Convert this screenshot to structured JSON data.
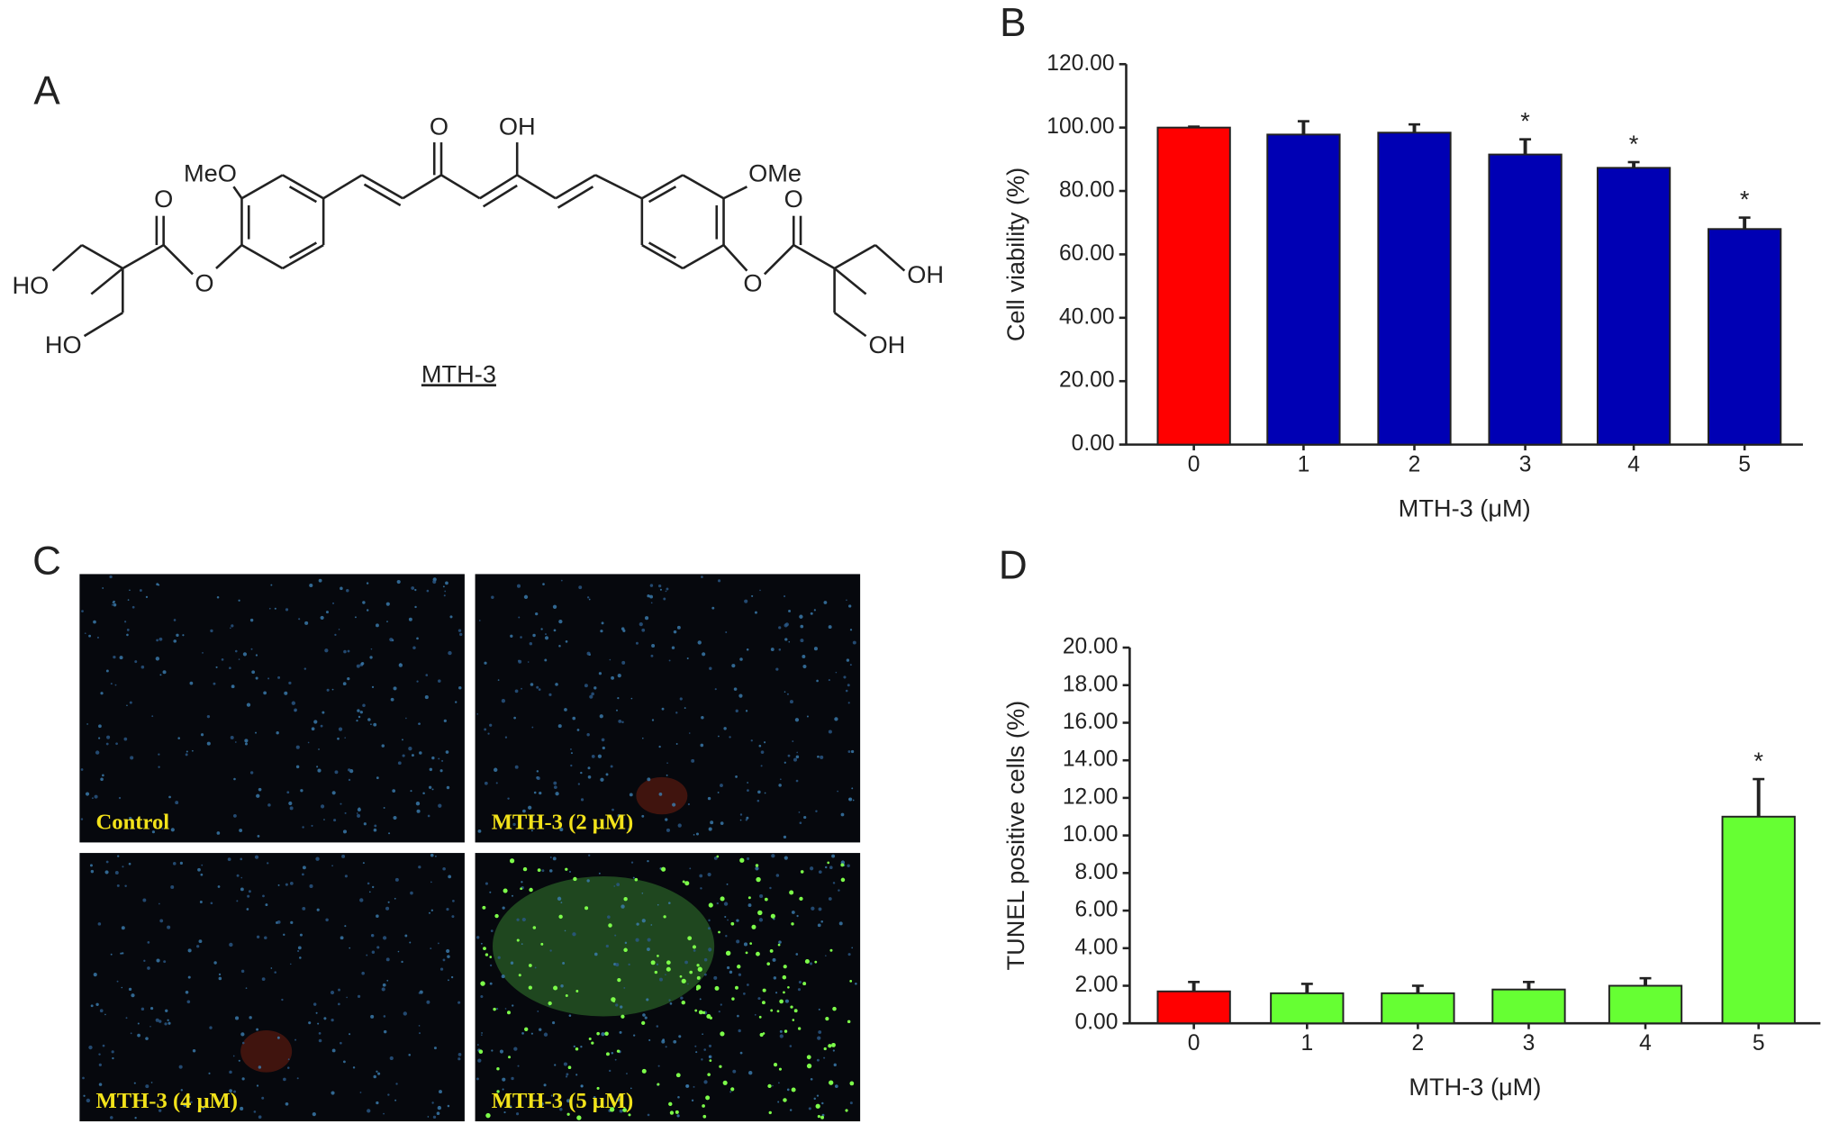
{
  "panel_labels": [
    "A",
    "B",
    "C",
    "D"
  ],
  "structure": {
    "atoms": [
      "MeO",
      "O",
      "OH",
      "OMe",
      "O",
      "O",
      "HO",
      "O",
      "O",
      "OH",
      "HO",
      "OH"
    ],
    "name": "MTH-3"
  },
  "micrographs": [
    "Control",
    "MTH-3 (2 μM)",
    "MTH-3 (4 μM)",
    "MTH-3 (5 μM)"
  ],
  "chart_data": [
    {
      "type": "bar",
      "categories": [
        "0",
        "1",
        "2",
        "3",
        "4",
        "5"
      ],
      "values": [
        100,
        97.8,
        98.4,
        91.5,
        87.3,
        68
      ],
      "errors": [
        0.3,
        4.2,
        2.6,
        4.8,
        1.8,
        3.6
      ],
      "colors": [
        "#ff0000",
        "#0000b4",
        "#0000b4",
        "#0000b4",
        "#0000b4",
        "#0000b4"
      ],
      "value_annotations": [
        null,
        null,
        null,
        "*",
        "*",
        "*"
      ],
      "xlabel": "MTH-3 (μM)",
      "ylabel": "Cell viability (%)",
      "ylim": [
        0,
        120
      ],
      "yticks": [
        {
          "value": 0,
          "label": "0.00"
        },
        {
          "value": 20,
          "label": "20.00"
        },
        {
          "value": 40,
          "label": "40.00"
        },
        {
          "value": 60,
          "label": "60.00"
        },
        {
          "value": 80,
          "label": "80.00"
        },
        {
          "value": 100,
          "label": "100.00"
        },
        {
          "value": 120,
          "label": "120.00"
        }
      ]
    },
    {
      "type": "bar",
      "categories": [
        "0",
        "1",
        "2",
        "3",
        "4",
        "5"
      ],
      "values": [
        1.7,
        1.6,
        1.6,
        1.8,
        2.0,
        11.0
      ],
      "errors": [
        0.5,
        0.5,
        0.4,
        0.4,
        0.4,
        2.0
      ],
      "colors": [
        "#ff0000",
        "#66ff33",
        "#66ff33",
        "#66ff33",
        "#66ff33",
        "#66ff33"
      ],
      "value_annotations": [
        null,
        null,
        null,
        null,
        null,
        "*"
      ],
      "xlabel": "MTH-3 (μM)",
      "ylabel": "TUNEL positive cells (%)",
      "ylim": [
        0,
        20
      ],
      "yticks": [
        {
          "value": 0,
          "label": "0.00"
        },
        {
          "value": 2,
          "label": "2.00"
        },
        {
          "value": 4,
          "label": "4.00"
        },
        {
          "value": 6,
          "label": "6.00"
        },
        {
          "value": 8,
          "label": "8.00"
        },
        {
          "value": 10,
          "label": "10.00"
        },
        {
          "value": 12,
          "label": "12.00"
        },
        {
          "value": 14,
          "label": "14.00"
        },
        {
          "value": 16,
          "label": "16.00"
        },
        {
          "value": 18,
          "label": "18.00"
        },
        {
          "value": 20,
          "label": "20.00"
        }
      ]
    }
  ]
}
